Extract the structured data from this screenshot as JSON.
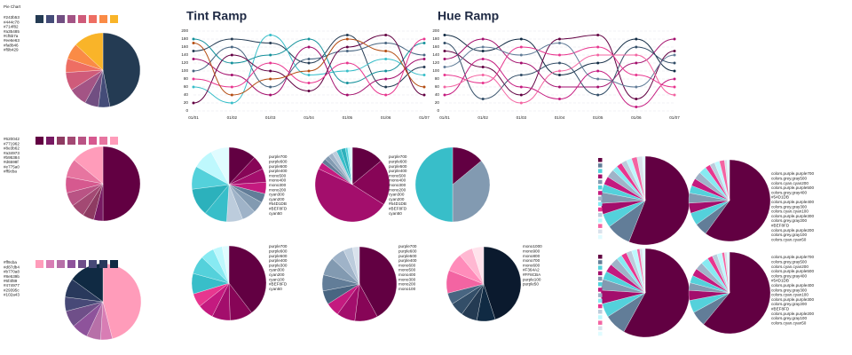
{
  "chart_data": [
    {
      "type": "pie",
      "title": "Pie Chart",
      "categories": [
        "#243b53",
        "#444c78",
        "#714f82",
        "#a35485",
        "#cf5b7a",
        "#ee6e63",
        "#fa8b46",
        "#f9b429"
      ],
      "colors": [
        "#243b53",
        "#444c78",
        "#714f82",
        "#a35485",
        "#cf5b7a",
        "#ee6e63",
        "#fa8b46",
        "#f9b429"
      ],
      "values": [
        47,
        5,
        6,
        8,
        8,
        6,
        7,
        13
      ]
    },
    {
      "type": "pie",
      "categories": [
        "#620042",
        "#771962",
        "#8e3b62",
        "#a34973",
        "#b95384",
        "#d6598f",
        "#e775a0",
        "#ff9cba"
      ],
      "colors": [
        "#620042",
        "#771962",
        "#8e3b62",
        "#a34973",
        "#b95384",
        "#d6598f",
        "#e775a0",
        "#ff9cba"
      ],
      "values": [
        50,
        4,
        5,
        6,
        6,
        7,
        8,
        14
      ]
    },
    {
      "type": "pie",
      "categories": [
        "#ff9cba",
        "#d87db4",
        "#b770a8",
        "#8e539b",
        "#6f4f89",
        "#474977",
        "#29395c",
        "#102a43"
      ],
      "colors": [
        "#ff9cba",
        "#d87db4",
        "#b770a8",
        "#8e539b",
        "#6f4f89",
        "#474977",
        "#29395c",
        "#102a43"
      ],
      "values": [
        46,
        5,
        6,
        7,
        7,
        6,
        8,
        15
      ]
    },
    {
      "type": "line",
      "title": "Tint Ramp",
      "categories": [
        "01/01",
        "01/02",
        "01/03",
        "01/04",
        "01/05",
        "01/06",
        "01/07"
      ],
      "ylim": [
        0,
        200
      ],
      "yticks": [
        0,
        20,
        40,
        60,
        80,
        100,
        120,
        140,
        160,
        180,
        200
      ],
      "grid": true,
      "series": [
        {
          "color": "#243b53",
          "values": [
            150,
            180,
            170,
            120,
            190,
            60,
            110
          ]
        },
        {
          "color": "#486581",
          "values": [
            100,
            160,
            60,
            130,
            150,
            170,
            140
          ]
        },
        {
          "color": "#38bec9",
          "values": [
            60,
            20,
            190,
            90,
            100,
            130,
            90
          ]
        },
        {
          "color": "#14919b",
          "values": [
            180,
            120,
            140,
            180,
            70,
            100,
            170
          ]
        },
        {
          "color": "#620042",
          "values": [
            20,
            140,
            100,
            50,
            160,
            190,
            40
          ]
        },
        {
          "color": "#a30e6c",
          "values": [
            130,
            90,
            40,
            160,
            40,
            80,
            130
          ]
        },
        {
          "color": "#e8368f",
          "values": [
            80,
            60,
            120,
            70,
            120,
            40,
            180
          ]
        },
        {
          "color": "#b44d12",
          "values": [
            170,
            40,
            80,
            100,
            180,
            150,
            60
          ]
        }
      ]
    },
    {
      "type": "line",
      "title": "Hue Ramp",
      "categories": [
        "01/01",
        "01/02",
        "01/03",
        "01/04",
        "01/05",
        "01/06",
        "01/07"
      ],
      "ylim": [
        0,
        200
      ],
      "yticks": [
        0,
        20,
        40,
        60,
        80,
        100,
        120,
        140,
        160,
        180,
        200
      ],
      "grid": true,
      "series": [
        {
          "color": "#102a43",
          "values": [
            190,
            150,
            180,
            90,
            120,
            180,
            100
          ]
        },
        {
          "color": "#620042",
          "values": [
            150,
            110,
            40,
            180,
            190,
            30,
            150
          ]
        },
        {
          "color": "#a30e6c",
          "values": [
            130,
            180,
            120,
            60,
            60,
            120,
            180
          ]
        },
        {
          "color": "#e8368f",
          "values": [
            90,
            70,
            160,
            140,
            160,
            90,
            60
          ]
        },
        {
          "color": "#334e68",
          "values": [
            170,
            30,
            90,
            120,
            40,
            160,
            120
          ]
        },
        {
          "color": "#c41a7f",
          "values": [
            40,
            130,
            60,
            30,
            100,
            10,
            80
          ]
        },
        {
          "color": "#627d98",
          "values": [
            110,
            160,
            140,
            170,
            80,
            60,
            140
          ]
        },
        {
          "color": "#f364a2",
          "values": [
            60,
            90,
            20,
            100,
            140,
            140,
            40
          ]
        }
      ]
    },
    {
      "type": "pie",
      "categories": [
        "purple700",
        "purple600",
        "purple500",
        "purple400",
        "mono500",
        "mono400",
        "mono300",
        "mono200",
        "cyan300",
        "cyan200",
        "#54D1DB",
        "#BEF8FD",
        "cyan50"
      ],
      "colors": [
        "#620042",
        "#870557",
        "#a30e6c",
        "#c41a7f",
        "#627d98",
        "#829ab1",
        "#9fb3c8",
        "#bcccdc",
        "#38bec9",
        "#2cb1bc",
        "#54D1DB",
        "#BEF8FD",
        "#e0fcff"
      ],
      "values": [
        12,
        6,
        6,
        5,
        4,
        5,
        6,
        7,
        10,
        12,
        10,
        9,
        8
      ]
    },
    {
      "type": "pie",
      "categories": [
        "purple700",
        "purple600",
        "purple500",
        "purple400",
        "mono500",
        "mono400",
        "mono300",
        "mono200",
        "cyan300",
        "cyan200",
        "#54D1DB",
        "#BEF8FD",
        "cyan50"
      ],
      "colors": [
        "#620042",
        "#870557",
        "#a30e6c",
        "#c41a7f",
        "#627d98",
        "#829ab1",
        "#9fb3c8",
        "#bcccdc",
        "#38bec9",
        "#2cb1bc",
        "#54D1DB",
        "#BEF8FD",
        "#e0fcff"
      ],
      "values": [
        14,
        20,
        48,
        3,
        2,
        2,
        2,
        2,
        2,
        2,
        1,
        1,
        1
      ]
    },
    {
      "type": "pie",
      "colors": [
        "#620042",
        "#829ab1",
        "#38bec9"
      ],
      "values": [
        14,
        36,
        50
      ]
    },
    {
      "type": "pie",
      "categories": [
        "purple700",
        "purple600",
        "purple500",
        "purple400",
        "purple300",
        "cyan300",
        "cyan200",
        "cyan100",
        "#BEF8FD",
        "cyan50"
      ],
      "colors": [
        "#620042",
        "#870557",
        "#a30e6c",
        "#c41a7f",
        "#e8368f",
        "#38bec9",
        "#54d1db",
        "#87eaf2",
        "#BEF8FD",
        "#e0fcff"
      ],
      "values": [
        40,
        10,
        8,
        7,
        6,
        9,
        8,
        6,
        4,
        3
      ]
    },
    {
      "type": "pie",
      "categories": [
        "purple700",
        "purple600",
        "purple500",
        "purple400",
        "mono600",
        "mono500",
        "mono400",
        "mono300",
        "mono200",
        "mono100"
      ],
      "colors": [
        "#620042",
        "#870557",
        "#a30e6c",
        "#c41a7f",
        "#486581",
        "#627d98",
        "#829ab1",
        "#9fb3c8",
        "#bcccdc",
        "#d9e2ec"
      ],
      "values": [
        42,
        10,
        8,
        6,
        6,
        7,
        8,
        6,
        4,
        3
      ]
    },
    {
      "type": "pie",
      "categories": [
        "mono1000",
        "mono900",
        "mono800",
        "mono700",
        "mono600",
        "#F364A2",
        "#FF8CBA",
        "purple100",
        "purple50"
      ],
      "colors": [
        "#0b1a2e",
        "#102a43",
        "#243b53",
        "#334e68",
        "#486581",
        "#F364A2",
        "#FF8CBA",
        "#ffb8d2",
        "#ffe3ec"
      ],
      "values": [
        45,
        8,
        7,
        6,
        5,
        10,
        8,
        6,
        5
      ]
    },
    {
      "type": "pie",
      "colors": [
        "#620042",
        "#627d98",
        "#54d1db",
        "#a30e6c",
        "#829ab1",
        "#54D1DB",
        "#c41a7f",
        "#9fb3c8",
        "#87eaf2",
        "#e8368f",
        "#bcccdc",
        "#BEF8FD",
        "#f364a2",
        "#d9e2ec",
        "#e0fcff"
      ],
      "values": [
        56,
        9,
        5,
        4,
        4,
        3,
        3,
        3,
        2,
        2,
        2,
        2,
        2,
        2,
        1
      ]
    },
    {
      "type": "pie",
      "categories": [
        "colors.purple.purple700",
        "colors.grey.gray500",
        "colors.cyan.cyan200",
        "colors.purple.purple500",
        "colors.grey.gray400",
        "#54D1DB",
        "colors.purple.purple400",
        "colors.grey.gray300",
        "colors.cyan.cyan100",
        "colors.purple.purple300",
        "colors.grey.gray200",
        "#BEF8FD",
        "colors.purple.purple200",
        "colors.grey.gray100",
        "colors.cyan.cyan50"
      ],
      "colors": [
        "#620042",
        "#627d98",
        "#54d1db",
        "#a30e6c",
        "#829ab1",
        "#54D1DB",
        "#c41a7f",
        "#9fb3c8",
        "#87eaf2",
        "#e8368f",
        "#bcccdc",
        "#BEF8FD",
        "#f364a2",
        "#d9e2ec",
        "#e0fcff"
      ],
      "values": [
        60,
        5,
        5,
        4,
        4,
        3,
        3,
        3,
        3,
        2,
        2,
        2,
        2,
        1,
        1
      ]
    },
    {
      "type": "pie",
      "colors": [
        "#620042",
        "#627d98",
        "#54d1db",
        "#a30e6c",
        "#829ab1",
        "#54D1DB",
        "#c41a7f",
        "#9fb3c8",
        "#87eaf2",
        "#e8368f",
        "#bcccdc",
        "#BEF8FD",
        "#f364a2",
        "#d9e2ec",
        "#e0fcff"
      ],
      "values": [
        58,
        8,
        5,
        5,
        4,
        3,
        3,
        3,
        2,
        2,
        2,
        2,
        1,
        1,
        1
      ]
    },
    {
      "type": "pie",
      "categories": [
        "colors.purple.purple700",
        "colors.grey.gray500",
        "colors.cyan.cyan200",
        "colors.purple.purple500",
        "colors.grey.gray400",
        "#54D1DB",
        "colors.purple.purple400",
        "colors.grey.gray300",
        "colors.cyan.cyan100",
        "colors.purple.purple300",
        "colors.grey.gray200",
        "#BEF8FD",
        "colors.purple.purple200",
        "colors.grey.gray100",
        "colors.cyan.cyan50"
      ],
      "colors": [
        "#620042",
        "#627d98",
        "#54d1db",
        "#a30e6c",
        "#829ab1",
        "#54D1DB",
        "#c41a7f",
        "#9fb3c8",
        "#87eaf2",
        "#e8368f",
        "#bcccdc",
        "#BEF8FD",
        "#f364a2",
        "#d9e2ec",
        "#e0fcff"
      ],
      "values": [
        61,
        6,
        5,
        4,
        3,
        3,
        3,
        3,
        3,
        2,
        2,
        2,
        1,
        1,
        1
      ]
    }
  ]
}
